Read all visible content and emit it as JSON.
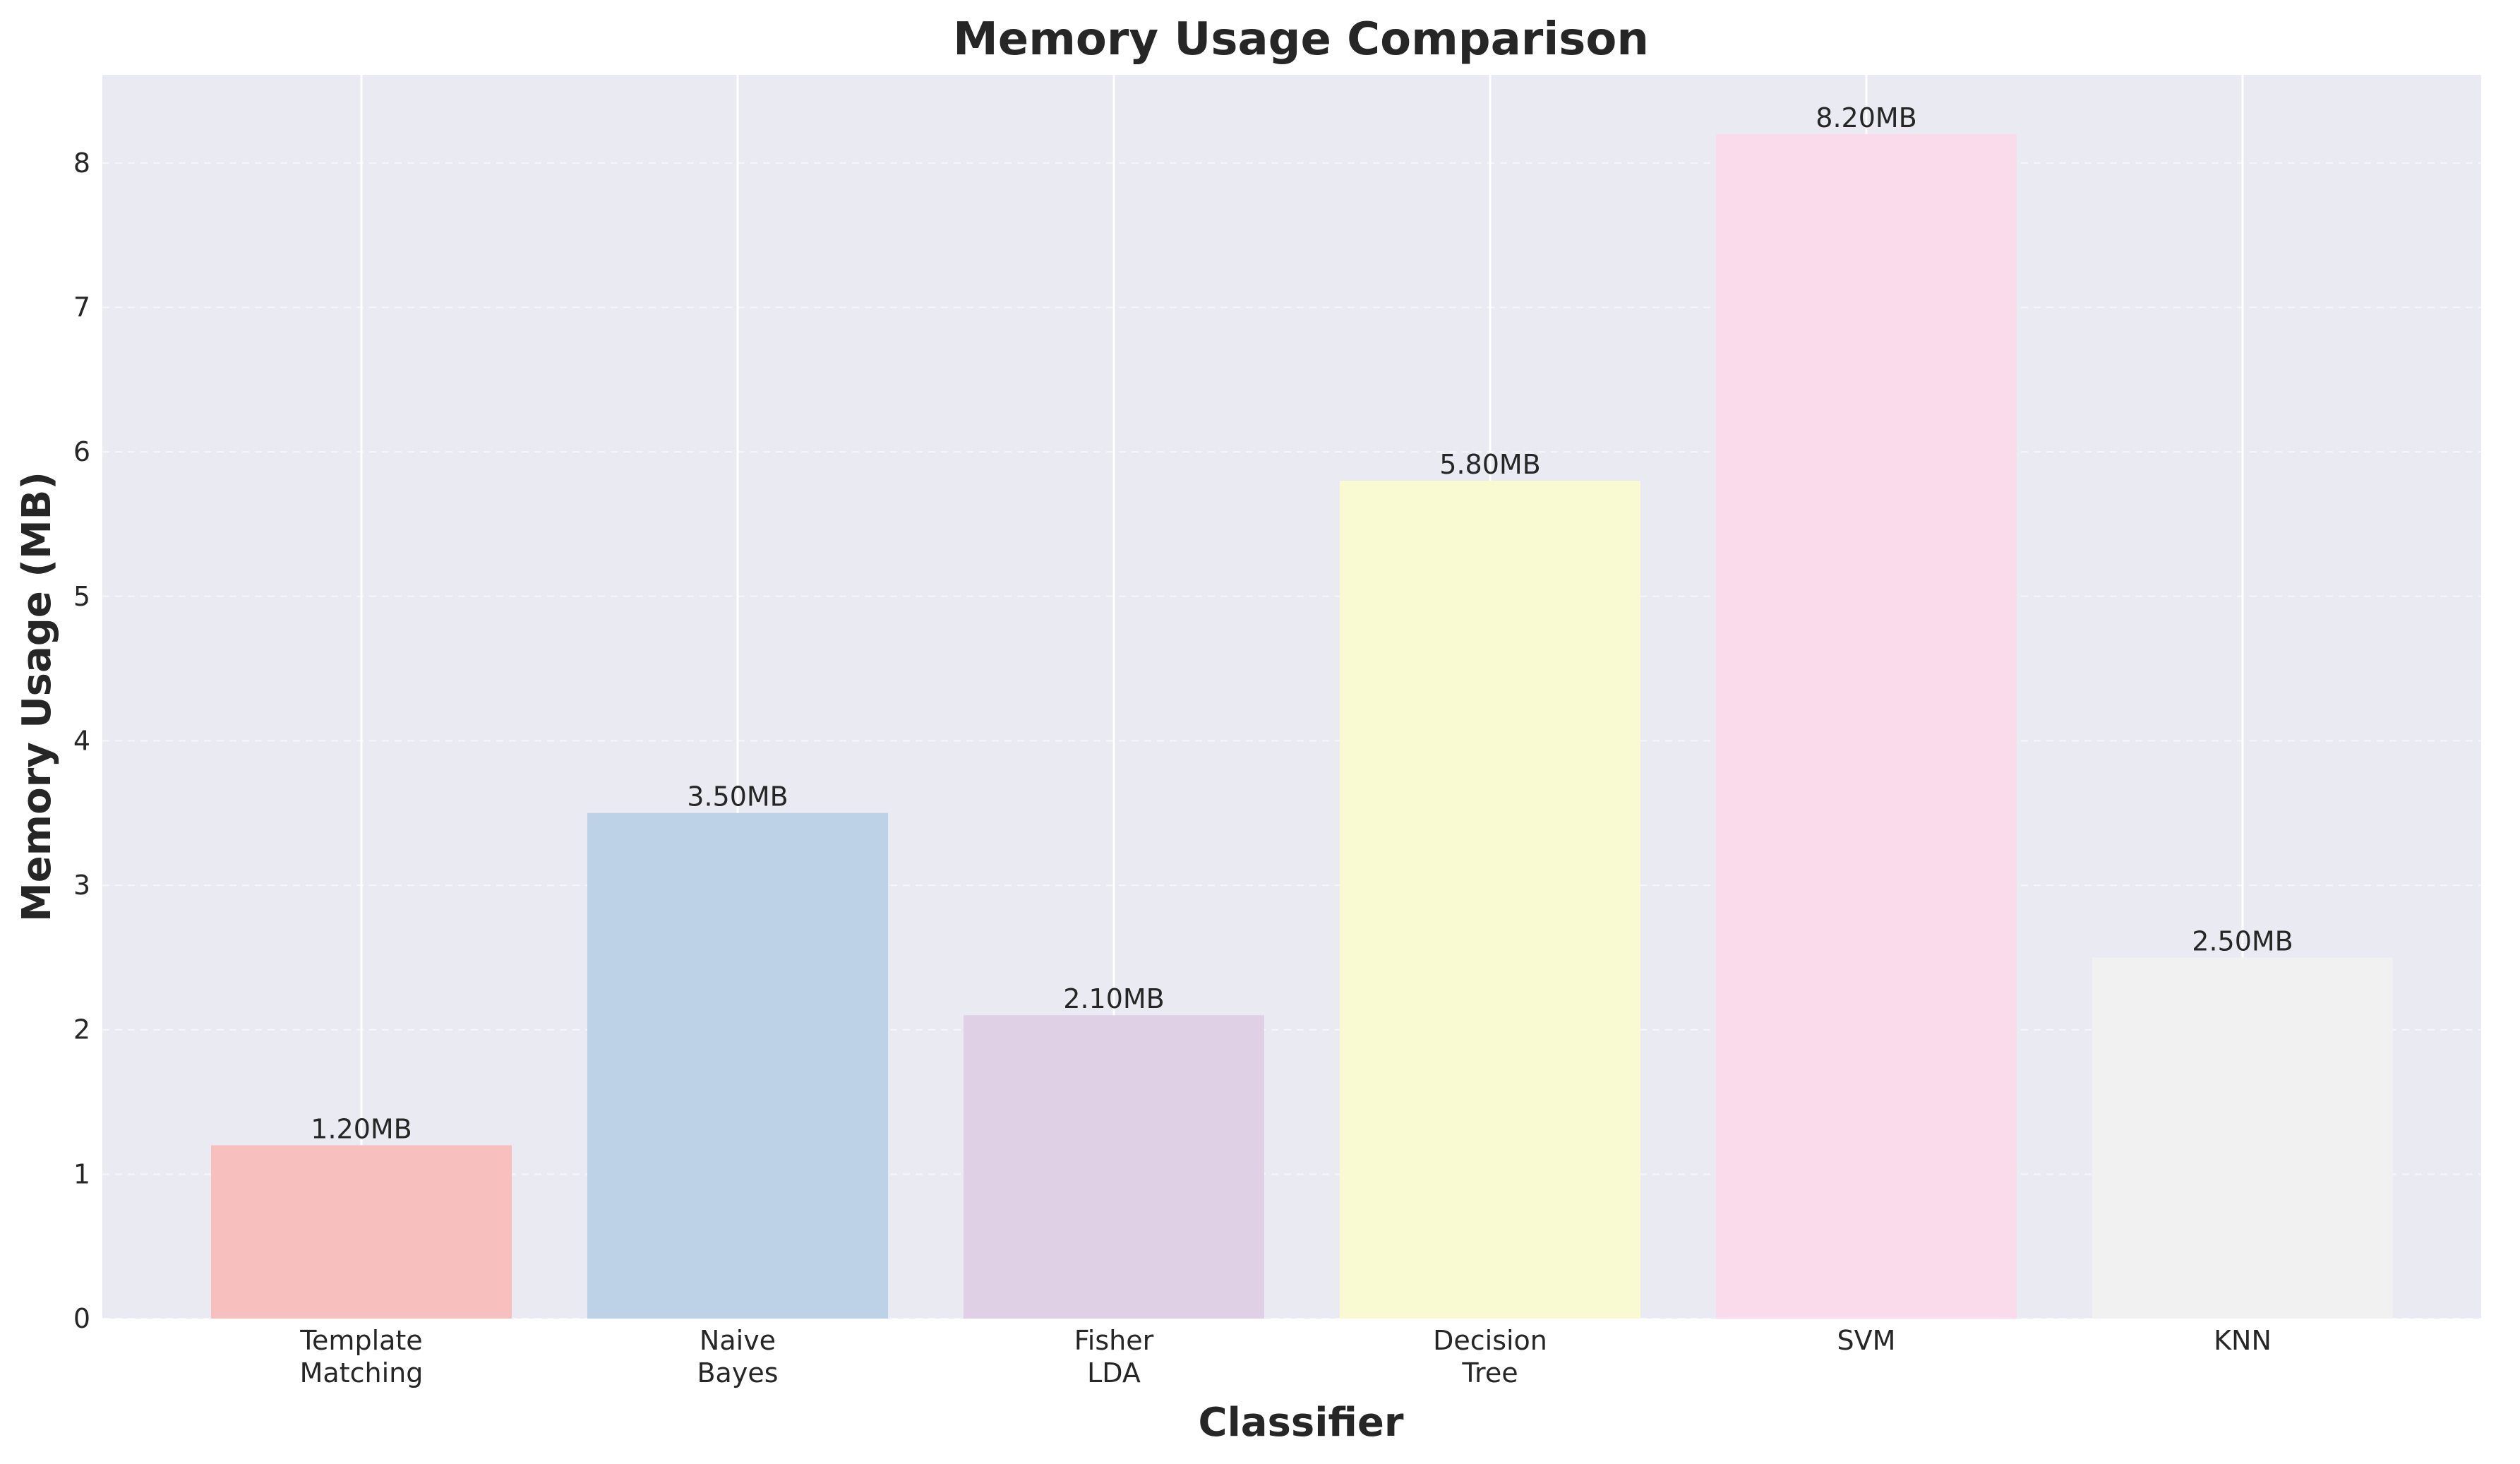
{
  "chart_data": {
    "type": "bar",
    "title": "Memory Usage Comparison",
    "xlabel": "Classifier",
    "ylabel": "Memory Usage (MB)",
    "categories": [
      [
        "Template",
        "Matching"
      ],
      [
        "Naive",
        "Bayes"
      ],
      [
        "Fisher",
        "LDA"
      ],
      [
        "Decision",
        "Tree"
      ],
      [
        "SVM"
      ],
      [
        "KNN"
      ]
    ],
    "values": [
      1.2,
      3.5,
      2.1,
      5.8,
      8.2,
      2.5
    ],
    "value_labels": [
      "1.20MB",
      "3.50MB",
      "2.10MB",
      "5.80MB",
      "8.20MB",
      "2.50MB"
    ],
    "colors": [
      "#f7bfbd",
      "#bed2e7",
      "#e0d0e6",
      "#f9fad2",
      "#f9dbeb",
      "#f1f1f1"
    ],
    "yticks": [
      0,
      1,
      2,
      3,
      4,
      5,
      6,
      7,
      8
    ],
    "ylim": [
      0,
      8.61
    ],
    "grid": true,
    "background": "#eaeaf2"
  }
}
